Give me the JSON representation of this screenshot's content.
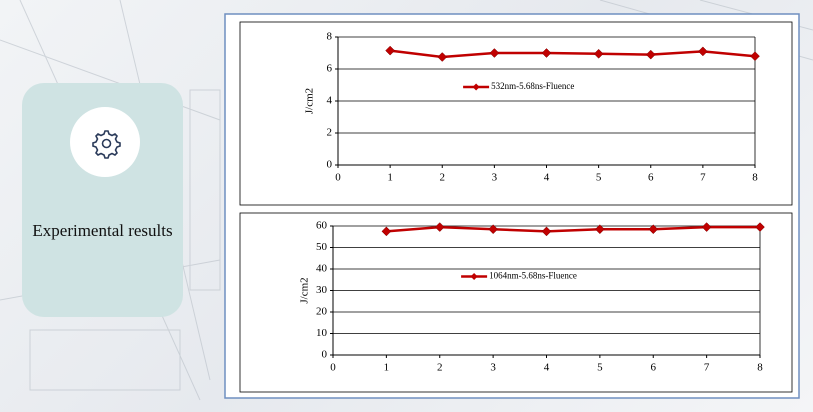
{
  "card": {
    "title": "Experimental results"
  },
  "chart_data": [
    {
      "type": "line",
      "x": [
        1,
        2,
        3,
        4,
        5,
        6,
        7,
        8
      ],
      "xlim": [
        0,
        8
      ],
      "xticks": [
        0,
        1,
        2,
        3,
        4,
        5,
        6,
        7,
        8
      ],
      "ylim": [
        0,
        8
      ],
      "yticks": [
        0,
        2,
        4,
        6,
        8
      ],
      "y_label": "J/cm2",
      "grid": true,
      "legend": "center",
      "series": [
        {
          "name": "532nm-5.68ns-Fluence",
          "color": "#c00000",
          "values": [
            7.15,
            6.75,
            7.0,
            7.0,
            6.95,
            6.9,
            7.1,
            6.8
          ]
        }
      ]
    },
    {
      "type": "line",
      "x": [
        1,
        2,
        3,
        4,
        5,
        6,
        7,
        8
      ],
      "xlim": [
        0,
        8
      ],
      "xticks": [
        0,
        1,
        2,
        3,
        4,
        5,
        6,
        7,
        8
      ],
      "ylim": [
        0,
        60
      ],
      "yticks": [
        0,
        10,
        20,
        30,
        40,
        50,
        60
      ],
      "y_label": "J/cm2",
      "grid": true,
      "legend": "center",
      "series": [
        {
          "name": "1064nm-5.68ns-Fluence",
          "color": "#c00000",
          "values": [
            57.5,
            59.5,
            58.5,
            57.5,
            58.5,
            58.5,
            59.5,
            59.5
          ]
        }
      ]
    }
  ]
}
